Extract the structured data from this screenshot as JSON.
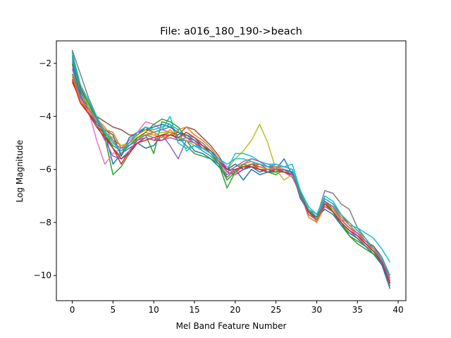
{
  "chart_data": {
    "type": "line",
    "title": "File: a016_180_190->beach",
    "xlabel": "Mel Band Feature Number",
    "ylabel": "Log Magnitude",
    "xlim": [
      -1.95,
      40.95
    ],
    "ylim": [
      -10.95,
      -1.15
    ],
    "xticks": [
      0,
      5,
      10,
      15,
      20,
      25,
      30,
      35,
      40
    ],
    "yticks": [
      -2,
      -4,
      -6,
      -8,
      -10
    ],
    "xtick_labels": [
      "0",
      "5",
      "10",
      "15",
      "20",
      "25",
      "30",
      "35",
      "40"
    ],
    "ytick_labels": [
      "−2",
      "−4",
      "−6",
      "−8",
      "−10"
    ],
    "grid": false,
    "legend": "none",
    "x": [
      0,
      1,
      2,
      3,
      4,
      5,
      6,
      7,
      8,
      9,
      10,
      11,
      12,
      13,
      14,
      15,
      16,
      17,
      18,
      19,
      20,
      21,
      22,
      23,
      24,
      25,
      26,
      27,
      28,
      29,
      30,
      31,
      32,
      33,
      34,
      35,
      36,
      37,
      38,
      39
    ],
    "series": [
      {
        "color": "#1f77b4",
        "values": [
          -1.5,
          -3.1,
          -3.6,
          -4.1,
          -4.6,
          -5.8,
          -5.4,
          -5.2,
          -5.0,
          -5.2,
          -5.1,
          -4.7,
          -4.6,
          -4.9,
          -4.9,
          -5.3,
          -5.4,
          -5.6,
          -5.9,
          -6.3,
          -6.0,
          -6.4,
          -6.0,
          -6.2,
          -6.1,
          -6.0,
          -5.6,
          -6.2,
          -6.9,
          -7.6,
          -7.8,
          -7.2,
          -7.4,
          -7.9,
          -8.2,
          -8.4,
          -8.8,
          -9.1,
          -9.6,
          -10.5
        ]
      },
      {
        "color": "#ff7f0e",
        "values": [
          -2.2,
          -3.2,
          -3.7,
          -4.1,
          -4.4,
          -4.9,
          -5.4,
          -5.1,
          -4.9,
          -4.6,
          -4.7,
          -4.8,
          -4.5,
          -4.8,
          -4.9,
          -5.1,
          -5.2,
          -5.3,
          -5.7,
          -6.0,
          -5.8,
          -6.0,
          -5.9,
          -5.9,
          -6.0,
          -6.0,
          -6.0,
          -6.1,
          -6.9,
          -7.5,
          -8.0,
          -7.4,
          -7.5,
          -7.9,
          -8.0,
          -8.3,
          -8.7,
          -8.9,
          -9.4,
          -10.0
        ]
      },
      {
        "color": "#2ca02c",
        "values": [
          -2.4,
          -3.3,
          -3.6,
          -4.0,
          -4.8,
          -6.2,
          -5.9,
          -5.4,
          -4.8,
          -4.7,
          -5.4,
          -4.2,
          -4.3,
          -4.8,
          -5.1,
          -5.4,
          -5.5,
          -5.6,
          -5.8,
          -6.7,
          -6.1,
          -5.9,
          -5.9,
          -6.0,
          -6.1,
          -6.2,
          -6.0,
          -6.3,
          -6.9,
          -7.6,
          -7.9,
          -7.3,
          -7.6,
          -8.1,
          -8.5,
          -8.7,
          -8.9,
          -9.2,
          -9.5,
          -10.1
        ]
      },
      {
        "color": "#d62728",
        "values": [
          -2.7,
          -3.4,
          -3.9,
          -4.3,
          -4.7,
          -5.2,
          -5.8,
          -5.3,
          -5.0,
          -4.8,
          -4.9,
          -4.9,
          -4.7,
          -4.6,
          -4.8,
          -4.9,
          -5.2,
          -5.4,
          -5.6,
          -6.1,
          -6.2,
          -6.0,
          -5.8,
          -5.9,
          -6.0,
          -6.1,
          -6.1,
          -6.2,
          -7.0,
          -7.7,
          -7.9,
          -7.2,
          -7.5,
          -8.0,
          -8.3,
          -8.5,
          -8.8,
          -9.0,
          -9.4,
          -10.3
        ]
      },
      {
        "color": "#9467bd",
        "values": [
          -1.9,
          -3.0,
          -3.6,
          -4.3,
          -4.9,
          -5.5,
          -5.6,
          -5.3,
          -4.9,
          -4.8,
          -4.9,
          -4.7,
          -5.1,
          -5.6,
          -4.9,
          -5.0,
          -5.3,
          -5.5,
          -5.8,
          -6.2,
          -6.0,
          -5.9,
          -5.8,
          -5.8,
          -6.0,
          -6.1,
          -6.1,
          -6.3,
          -6.9,
          -7.7,
          -7.9,
          -7.4,
          -7.6,
          -8.0,
          -8.3,
          -8.6,
          -8.9,
          -9.1,
          -9.5,
          -10.2
        ]
      },
      {
        "color": "#8c564b",
        "values": [
          -1.6,
          -2.9,
          -3.5,
          -4.0,
          -4.2,
          -4.4,
          -4.5,
          -4.7,
          -4.7,
          -4.4,
          -4.6,
          -4.5,
          -4.6,
          -4.7,
          -4.4,
          -4.5,
          -4.8,
          -5.1,
          -5.5,
          -6.0,
          -6.1,
          -5.9,
          -5.8,
          -5.8,
          -5.9,
          -5.9,
          -6.0,
          -6.2,
          -6.8,
          -7.5,
          -7.9,
          -7.1,
          -7.3,
          -7.7,
          -8.1,
          -8.4,
          -8.7,
          -8.9,
          -9.3,
          -10.1
        ]
      },
      {
        "color": "#e377c2",
        "values": [
          -2.0,
          -3.3,
          -3.8,
          -4.9,
          -5.8,
          -5.4,
          -5.2,
          -4.9,
          -4.6,
          -4.2,
          -4.3,
          -4.5,
          -4.6,
          -4.8,
          -4.7,
          -4.9,
          -5.1,
          -5.3,
          -5.6,
          -5.9,
          -6.2,
          -5.8,
          -5.6,
          -5.7,
          -5.8,
          -5.9,
          -6.0,
          -6.3,
          -6.9,
          -7.6,
          -7.8,
          -7.3,
          -7.5,
          -7.9,
          -8.2,
          -8.5,
          -8.9,
          -9.2,
          -9.6,
          -10.0
        ]
      },
      {
        "color": "#7f7f7f",
        "values": [
          -1.5,
          -2.4,
          -3.3,
          -4.0,
          -4.6,
          -4.9,
          -5.1,
          -5.0,
          -4.8,
          -4.7,
          -4.6,
          -4.5,
          -4.4,
          -4.6,
          -4.7,
          -4.8,
          -5.0,
          -5.3,
          -5.7,
          -6.3,
          -6.0,
          -5.9,
          -5.8,
          -6.0,
          -6.0,
          -5.9,
          -5.9,
          -6.0,
          -6.8,
          -7.5,
          -7.8,
          -6.8,
          -6.9,
          -7.3,
          -7.5,
          -8.2,
          -8.6,
          -9.0,
          -9.5,
          -10.4
        ]
      },
      {
        "color": "#bcbd22",
        "values": [
          -2.1,
          -3.0,
          -3.6,
          -4.3,
          -4.6,
          -4.8,
          -5.1,
          -5.0,
          -4.8,
          -4.7,
          -4.7,
          -4.6,
          -4.6,
          -4.8,
          -4.9,
          -5.1,
          -5.2,
          -5.4,
          -5.7,
          -6.0,
          -5.6,
          -5.3,
          -4.9,
          -4.3,
          -5.0,
          -6.0,
          -6.4,
          -6.2,
          -7.0,
          -7.7,
          -7.9,
          -7.3,
          -7.5,
          -8.0,
          -8.4,
          -8.6,
          -8.9,
          -9.1,
          -9.5,
          -10.2
        ]
      },
      {
        "color": "#17becf",
        "values": [
          -1.8,
          -3.0,
          -3.5,
          -4.1,
          -4.5,
          -5.2,
          -5.5,
          -5.0,
          -4.7,
          -4.5,
          -4.6,
          -4.5,
          -4.0,
          -5.0,
          -5.2,
          -5.1,
          -5.3,
          -5.5,
          -5.8,
          -6.0,
          -5.4,
          -5.4,
          -5.5,
          -5.7,
          -5.8,
          -5.8,
          -5.9,
          -5.8,
          -6.8,
          -7.5,
          -7.7,
          -7.1,
          -7.3,
          -7.8,
          -8.1,
          -8.2,
          -8.4,
          -8.6,
          -9.0,
          -9.5
        ]
      },
      {
        "color": "#1f77b4",
        "values": [
          -2.0,
          -3.2,
          -3.8,
          -4.3,
          -4.5,
          -4.7,
          -5.5,
          -4.8,
          -4.6,
          -4.5,
          -4.4,
          -4.3,
          -4.4,
          -4.6,
          -4.7,
          -4.9,
          -5.1,
          -5.3,
          -5.6,
          -6.0,
          -5.8,
          -6.0,
          -5.9,
          -6.1,
          -6.0,
          -6.1,
          -6.0,
          -6.1,
          -7.1,
          -7.6,
          -7.8,
          -7.5,
          -7.7,
          -8.1,
          -8.4,
          -8.6,
          -8.9,
          -9.2,
          -9.6,
          -10.3
        ]
      },
      {
        "color": "#ff7f0e",
        "values": [
          -2.5,
          -3.4,
          -3.8,
          -4.2,
          -4.5,
          -4.6,
          -5.2,
          -5.0,
          -4.7,
          -4.5,
          -4.6,
          -4.8,
          -4.7,
          -4.5,
          -4.4,
          -4.7,
          -4.9,
          -5.2,
          -5.6,
          -6.1,
          -5.9,
          -5.8,
          -5.7,
          -5.9,
          -6.0,
          -5.9,
          -6.1,
          -6.2,
          -6.9,
          -7.8,
          -8.0,
          -7.3,
          -7.4,
          -7.8,
          -8.1,
          -8.4,
          -8.8,
          -9.0,
          -9.4,
          -10.1
        ]
      },
      {
        "color": "#2ca02c",
        "values": [
          -1.7,
          -3.0,
          -3.5,
          -4.1,
          -4.7,
          -5.1,
          -5.3,
          -5.1,
          -4.8,
          -4.6,
          -4.3,
          -4.1,
          -4.2,
          -4.4,
          -4.8,
          -5.0,
          -5.2,
          -5.4,
          -5.8,
          -6.4,
          -6.1,
          -5.8,
          -5.9,
          -6.0,
          -6.1,
          -6.1,
          -6.0,
          -6.2,
          -6.9,
          -7.6,
          -7.8,
          -7.2,
          -7.6,
          -8.0,
          -8.5,
          -8.8,
          -9.0,
          -9.2,
          -9.5,
          -10.0
        ]
      },
      {
        "color": "#d62728",
        "values": [
          -2.6,
          -3.5,
          -3.9,
          -4.4,
          -4.8,
          -5.2,
          -5.6,
          -5.4,
          -5.0,
          -4.9,
          -4.8,
          -4.7,
          -4.7,
          -4.8,
          -4.6,
          -4.8,
          -5.1,
          -5.4,
          -5.7,
          -6.0,
          -6.0,
          -5.9,
          -5.9,
          -6.0,
          -6.1,
          -6.0,
          -6.1,
          -6.2,
          -7.0,
          -7.6,
          -7.9,
          -7.3,
          -7.6,
          -8.0,
          -8.3,
          -8.5,
          -8.8,
          -9.1,
          -9.5,
          -10.3
        ]
      },
      {
        "color": "#9467bd",
        "values": [
          -2.2,
          -3.3,
          -3.7,
          -4.2,
          -4.6,
          -5.0,
          -5.2,
          -5.1,
          -4.9,
          -4.7,
          -4.8,
          -4.9,
          -4.8,
          -4.9,
          -4.8,
          -5.0,
          -5.2,
          -5.4,
          -5.7,
          -6.1,
          -5.9,
          -5.7,
          -5.6,
          -5.7,
          -5.9,
          -6.0,
          -6.0,
          -6.2,
          -7.0,
          -7.7,
          -7.9,
          -7.2,
          -7.4,
          -7.9,
          -8.2,
          -8.4,
          -8.7,
          -9.0,
          -9.4,
          -10.2
        ]
      },
      {
        "color": "#17becf",
        "values": [
          -1.6,
          -2.8,
          -3.4,
          -4.0,
          -4.6,
          -5.0,
          -5.3,
          -5.0,
          -4.6,
          -4.4,
          -4.5,
          -4.4,
          -4.3,
          -4.5,
          -5.3,
          -5.1,
          -5.2,
          -5.4,
          -5.6,
          -5.8,
          -5.6,
          -5.6,
          -5.7,
          -5.8,
          -5.9,
          -5.8,
          -5.9,
          -6.0,
          -6.8,
          -7.4,
          -7.7,
          -7.0,
          -7.2,
          -7.7,
          -8.0,
          -8.3,
          -8.6,
          -9.0,
          -9.3,
          -10.0
        ]
      }
    ]
  }
}
